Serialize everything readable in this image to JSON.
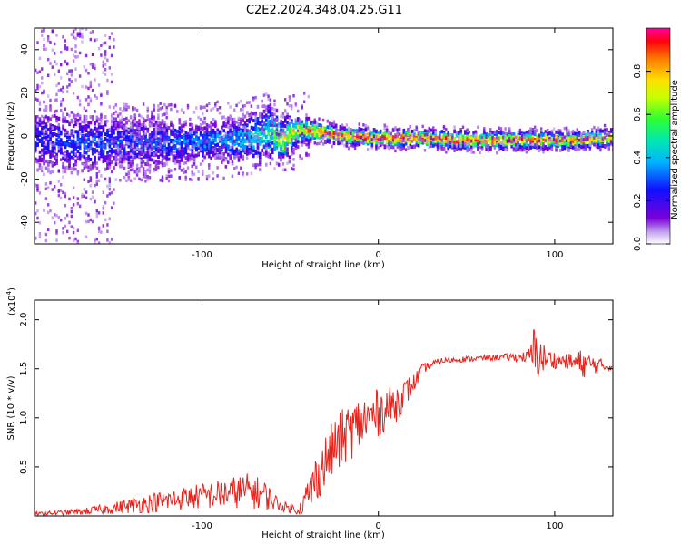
{
  "title": "C2E2.2024.348.04.25.G11",
  "chart_data": [
    {
      "type": "heatmap",
      "xlabel": "Height of straight line (km)",
      "ylabel": "Frequency (Hz)",
      "xlim": [
        -195,
        133
      ],
      "ylim": [
        -50,
        50
      ],
      "xticks": [
        -100,
        0,
        100
      ],
      "yticks": [
        -40,
        -20,
        0,
        20,
        40
      ],
      "colorbar": {
        "label": "Normalized spectral amplitude",
        "range": [
          0,
          1
        ],
        "ticks": [
          0.0,
          0.2,
          0.4,
          0.6,
          0.8
        ],
        "tick_labels": [
          "0.0",
          "0.2",
          "0.4",
          "0.6",
          "0.8"
        ]
      },
      "ridge": {
        "x": [
          -190,
          -170,
          -150,
          -130,
          -110,
          -90,
          -75,
          -62,
          -55,
          -45,
          -35,
          -20,
          0,
          20,
          50,
          80,
          110,
          133
        ],
        "center_freq": [
          -2,
          -3,
          -3,
          -3,
          -3,
          -2,
          -1,
          2,
          -2,
          3,
          2,
          0,
          -1,
          -1,
          -2,
          -2,
          -2,
          -1
        ],
        "spread": [
          10,
          9,
          8,
          7,
          6,
          6,
          7,
          8,
          6,
          4,
          3,
          2.5,
          2.5,
          2.5,
          2.5,
          2.5,
          2.5,
          2.5
        ],
        "peak_amplitude": [
          0.25,
          0.3,
          0.3,
          0.32,
          0.33,
          0.36,
          0.42,
          0.5,
          0.72,
          0.75,
          0.82,
          0.9,
          0.95,
          0.9,
          0.88,
          0.85,
          0.83,
          0.8
        ]
      }
    },
    {
      "type": "line",
      "xlabel": "Height of straight line (km)",
      "ylabel": "SNR (10 * v/v)",
      "scale_label": "(x10",
      "scale_exponent": "4",
      "xlim": [
        -195,
        133
      ],
      "ylim": [
        0,
        2.2
      ],
      "xticks": [
        -100,
        0,
        100
      ],
      "yticks": [
        0.5,
        1.0,
        1.5,
        2.0
      ],
      "ytick_labels": [
        "0.5",
        "1.0",
        "1.5",
        "2.0"
      ],
      "series": [
        {
          "name": "SNR",
          "color": "#e8231c",
          "trend_x": [
            -195,
            -170,
            -150,
            -130,
            -110,
            -90,
            -75,
            -65,
            -55,
            -45,
            -40,
            -35,
            -30,
            -25,
            -20,
            -10,
            0,
            10,
            20,
            25,
            35,
            50,
            70,
            85,
            88,
            95,
            105,
            115,
            133
          ],
          "trend_y": [
            0.02,
            0.04,
            0.08,
            0.13,
            0.18,
            0.22,
            0.26,
            0.22,
            0.1,
            0.06,
            0.2,
            0.4,
            0.55,
            0.7,
            0.8,
            0.95,
            1.05,
            1.15,
            1.35,
            1.5,
            1.58,
            1.6,
            1.62,
            1.62,
            1.65,
            1.6,
            1.58,
            1.55,
            1.52
          ],
          "noise_amp": [
            0.02,
            0.03,
            0.06,
            0.1,
            0.12,
            0.15,
            0.18,
            0.16,
            0.05,
            0.05,
            0.2,
            0.25,
            0.28,
            0.3,
            0.3,
            0.28,
            0.25,
            0.2,
            0.1,
            0.05,
            0.03,
            0.03,
            0.03,
            0.06,
            0.3,
            0.12,
            0.06,
            0.15,
            0.03
          ]
        }
      ]
    }
  ]
}
